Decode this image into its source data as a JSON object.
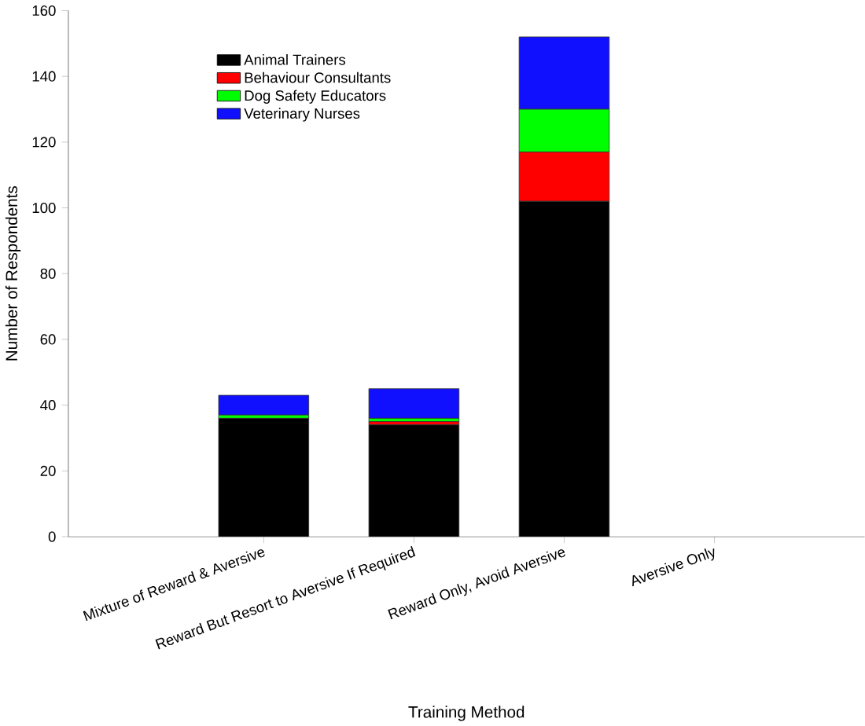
{
  "chart_data": {
    "type": "bar",
    "stacked": true,
    "xlabel": "Training Method",
    "ylabel": "Number of Respondents",
    "categories": [
      "Mixture of Reward & Aversive",
      "Reward But Resort to Aversive If Required",
      "Reward Only, Avoid Aversive",
      "Aversive Only"
    ],
    "series": [
      {
        "name": "Animal Trainers",
        "color": "#000000",
        "values": [
          36,
          34,
          102,
          0
        ]
      },
      {
        "name": "Behaviour Consultants",
        "color": "#ff0000",
        "values": [
          0,
          1,
          15,
          0
        ]
      },
      {
        "name": "Dog Safety Educators",
        "color": "#00ff00",
        "values": [
          1,
          1,
          13,
          0
        ]
      },
      {
        "name": "Veterinary Nurses",
        "color": "#1010ff",
        "values": [
          6,
          9,
          22,
          0
        ]
      }
    ],
    "ylim": [
      0,
      160
    ],
    "yticks": [
      0,
      20,
      40,
      60,
      80,
      100,
      120,
      140,
      160
    ],
    "legend": "top left",
    "grid": false
  }
}
